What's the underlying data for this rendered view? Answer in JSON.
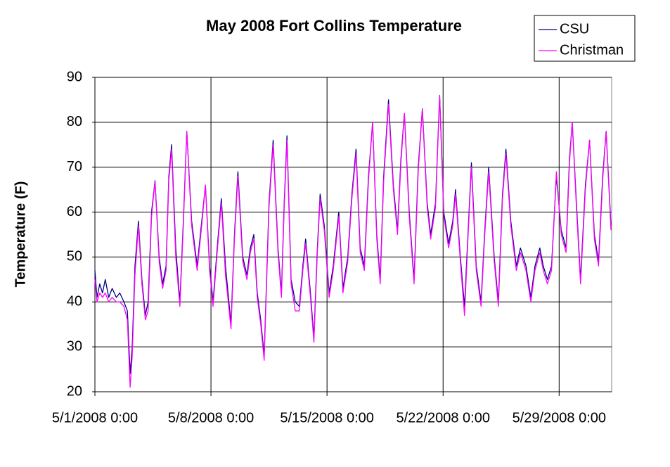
{
  "chart_data": {
    "type": "line",
    "title": "May 2008 Fort Collins Temperature",
    "y_label": "Temperature (F)",
    "x": [
      "5/1/2008 0:00",
      "5/1/2008 3:00",
      "5/1/2008 7:00",
      "5/1/2008 11:00",
      "5/1/2008 15:00",
      "5/1/2008 20:00",
      "5/2/2008 1:00",
      "5/2/2008 7:00",
      "5/2/2008 12:00",
      "5/2/2008 18:00",
      "5/2/2008 23:00",
      "5/3/2008 3:00",
      "5/3/2008 6:00",
      "5/3/2008 10:00",
      "5/3/2008 15:00",
      "5/3/2008 20:00",
      "5/4/2008 1:00",
      "5/4/2008 5:00",
      "5/4/2008 10:00",
      "5/4/2008 15:00",
      "5/4/2008 21:00",
      "5/5/2008 2:00",
      "5/5/2008 7:00",
      "5/5/2008 11:00",
      "5/5/2008 15:00",
      "5/5/2008 21:00",
      "5/6/2008 3:00",
      "5/6/2008 8:00",
      "5/6/2008 13:00",
      "5/6/2008 20:00",
      "5/7/2008 4:00",
      "5/7/2008 10:00",
      "5/7/2008 16:00",
      "5/7/2008 22:00",
      "5/8/2008 3:00",
      "5/8/2008 9:00",
      "5/8/2008 15:00",
      "5/8/2008 21:00",
      "5/9/2008 5:00",
      "5/9/2008 10:00",
      "5/9/2008 15:00",
      "5/9/2008 22:00",
      "5/10/2008 4:00",
      "5/10/2008 9:00",
      "5/10/2008 14:00",
      "5/10/2008 19:00",
      "5/11/2008 0:00",
      "5/11/2008 5:00",
      "5/11/2008 12:00",
      "5/11/2008 18:00",
      "5/12/2008 1:00",
      "5/12/2008 6:00",
      "5/12/2008 10:00",
      "5/12/2008 14:00",
      "5/12/2008 20:00",
      "5/13/2008 2:00",
      "5/13/2008 8:00",
      "5/13/2008 13:00",
      "5/13/2008 17:00",
      "5/14/2008 0:00",
      "5/14/2008 5:00",
      "5/14/2008 10:00",
      "5/14/2008 14:00",
      "5/14/2008 20:00",
      "5/15/2008 3:00",
      "5/15/2008 9:00",
      "5/15/2008 17:00",
      "5/15/2008 23:00",
      "5/16/2008 6:00",
      "5/16/2008 12:00",
      "5/16/2008 18:00",
      "5/17/2008 0:00",
      "5/17/2008 6:00",
      "5/17/2008 12:00",
      "5/17/2008 18:00",
      "5/18/2008 0:00",
      "5/18/2008 5:00",
      "5/18/2008 10:00",
      "5/18/2008 17:00",
      "5/19/2008 0:00",
      "5/19/2008 6:00",
      "5/19/2008 11:00",
      "5/19/2008 16:00",
      "5/19/2008 23:00",
      "5/20/2008 6:00",
      "5/20/2008 12:00",
      "5/20/2008 18:00",
      "5/21/2008 1:00",
      "5/21/2008 6:00",
      "5/21/2008 13:00",
      "5/21/2008 19:00",
      "5/22/2008 1:00",
      "5/22/2008 8:00",
      "5/22/2008 14:00",
      "5/22/2008 18:00",
      "5/23/2008 1:00",
      "5/23/2008 7:00",
      "5/23/2008 12:00",
      "5/23/2008 17:00",
      "5/24/2008 0:00",
      "5/24/2008 7:00",
      "5/24/2008 12:00",
      "5/24/2008 18:00",
      "5/25/2008 2:00",
      "5/25/2008 8:00",
      "5/25/2008 14:00",
      "5/25/2008 19:00",
      "5/26/2008 2:00",
      "5/26/2008 10:00",
      "5/26/2008 16:00",
      "5/27/2008 0:00",
      "5/27/2008 7:00",
      "5/27/2008 13:00",
      "5/27/2008 20:00",
      "5/28/2008 1:00",
      "5/28/2008 7:00",
      "5/28/2008 13:00",
      "5/28/2008 20:00",
      "5/29/2008 3:00",
      "5/29/2008 10:00",
      "5/29/2008 15:00",
      "5/29/2008 19:00",
      "5/30/2008 1:00",
      "5/30/2008 7:00",
      "5/30/2008 14:00",
      "5/30/2008 20:00",
      "5/31/2008 3:00",
      "5/31/2008 9:00",
      "5/31/2008 15:00",
      "5/31/2008 20:00",
      "6/1/2008 3:00"
    ],
    "series": [
      {
        "name": "CSU",
        "color": "#000080",
        "values": [
          47,
          41,
          44,
          42,
          45,
          41,
          43,
          41,
          42,
          40,
          38,
          24,
          30,
          48,
          58,
          45,
          37,
          40,
          60,
          67,
          50,
          44,
          48,
          68,
          75,
          52,
          40,
          58,
          78,
          58,
          48,
          57,
          66,
          48,
          40,
          52,
          63,
          48,
          35,
          55,
          69,
          50,
          46,
          52,
          55,
          42,
          36,
          28,
          62,
          76,
          52,
          42,
          62,
          77,
          45,
          40,
          39,
          48,
          54,
          42,
          32,
          52,
          64,
          57,
          42,
          48,
          60,
          43,
          50,
          64,
          74,
          52,
          48,
          68,
          80,
          55,
          45,
          68,
          85,
          66,
          56,
          72,
          82,
          60,
          45,
          70,
          83,
          62,
          55,
          62,
          86,
          60,
          53,
          58,
          65,
          50,
          39,
          55,
          71,
          48,
          40,
          55,
          70,
          50,
          40,
          64,
          74,
          58,
          48,
          52,
          48,
          41,
          48,
          52,
          48,
          45,
          48,
          68,
          56,
          52,
          72,
          80,
          62,
          45,
          66,
          76,
          55,
          49,
          68,
          78,
          57
        ]
      },
      {
        "name": "Christman",
        "color": "#ff00ff",
        "values": [
          45,
          40,
          42,
          41,
          42,
          40,
          41,
          40,
          40,
          39,
          36,
          21,
          28,
          46,
          57,
          44,
          36,
          38,
          59,
          67,
          49,
          43,
          47,
          67,
          74,
          50,
          39,
          57,
          78,
          57,
          47,
          56,
          66,
          47,
          39,
          51,
          62,
          46,
          34,
          54,
          68,
          49,
          45,
          51,
          54,
          41,
          35,
          27,
          61,
          75,
          51,
          41,
          61,
          76,
          44,
          38,
          38,
          47,
          53,
          41,
          31,
          51,
          63,
          56,
          41,
          47,
          59,
          42,
          49,
          63,
          73,
          51,
          47,
          67,
          80,
          54,
          44,
          67,
          84,
          65,
          55,
          71,
          82,
          59,
          44,
          69,
          83,
          61,
          54,
          61,
          86,
          59,
          52,
          57,
          64,
          49,
          37,
          54,
          70,
          47,
          39,
          54,
          69,
          49,
          39,
          63,
          73,
          57,
          47,
          51,
          47,
          40,
          47,
          51,
          47,
          44,
          47,
          69,
          55,
          51,
          71,
          80,
          61,
          44,
          65,
          76,
          54,
          48,
          67,
          78,
          56
        ]
      }
    ],
    "xlim": [
      "5/1/2008 0:00",
      "6/1/2008 4:00"
    ],
    "xticks": [
      "5/1/2008 0:00",
      "5/8/2008 0:00",
      "5/15/2008 0:00",
      "5/22/2008 0:00",
      "5/29/2008 0:00"
    ],
    "ylim": [
      20,
      90
    ],
    "yticks": [
      20,
      30,
      40,
      50,
      60,
      70,
      80,
      90
    ],
    "grid": true,
    "legend": "top-right"
  }
}
